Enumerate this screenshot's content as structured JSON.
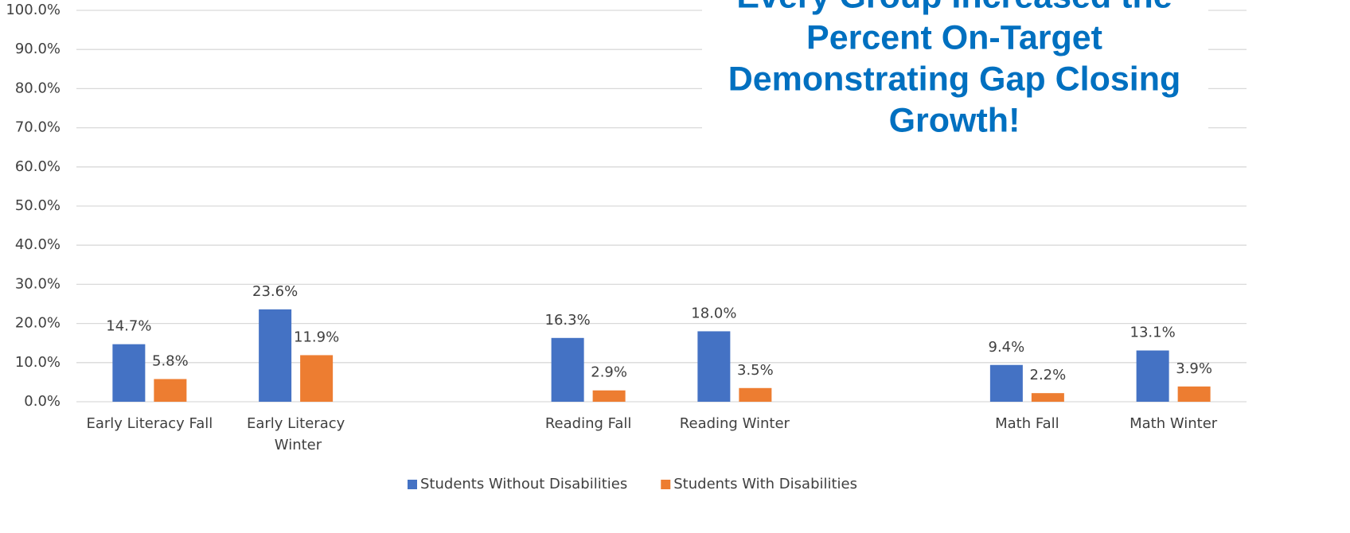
{
  "chart_data": {
    "type": "bar",
    "title_lines": [
      "Every Group Increased the",
      "Percent On-Target",
      "Demonstrating Gap Closing",
      "Growth!"
    ],
    "categories": [
      "Early Literacy Fall",
      "Early Literacy Winter",
      null,
      "Reading Fall",
      "Reading Winter",
      null,
      "Math Fall",
      "Math Winter"
    ],
    "series": [
      {
        "name": "Students Without Disabilities",
        "color": "#4472c4",
        "values": [
          14.7,
          23.6,
          null,
          16.3,
          18.0,
          null,
          9.4,
          13.1
        ],
        "value_labels": [
          "14.7%",
          "23.6%",
          null,
          "16.3%",
          "18.0%",
          null,
          "9.4%",
          "13.1%"
        ]
      },
      {
        "name": "Students With Disabilities",
        "color": "#ed7d31",
        "values": [
          5.8,
          11.9,
          null,
          2.9,
          3.5,
          null,
          2.2,
          3.9
        ],
        "value_labels": [
          "5.8%",
          "11.9%",
          null,
          "2.9%",
          "3.5%",
          null,
          "2.2%",
          "3.9%"
        ]
      }
    ],
    "ylim": [
      0,
      100
    ],
    "yticks": [
      {
        "value": 0,
        "label": "0.0%"
      },
      {
        "value": 10,
        "label": "10.0%"
      },
      {
        "value": 20,
        "label": "20.0%"
      },
      {
        "value": 30,
        "label": "30.0%"
      },
      {
        "value": 40,
        "label": "40.0%"
      },
      {
        "value": 50,
        "label": "50.0%"
      },
      {
        "value": 60,
        "label": "60.0%"
      },
      {
        "value": 70,
        "label": "70.0%"
      },
      {
        "value": 80,
        "label": "80.0%"
      },
      {
        "value": 90,
        "label": "90.0%"
      },
      {
        "value": 100,
        "label": "100.0%"
      }
    ],
    "grid": true,
    "legend": "bottom",
    "title_color": "#0070c0"
  }
}
